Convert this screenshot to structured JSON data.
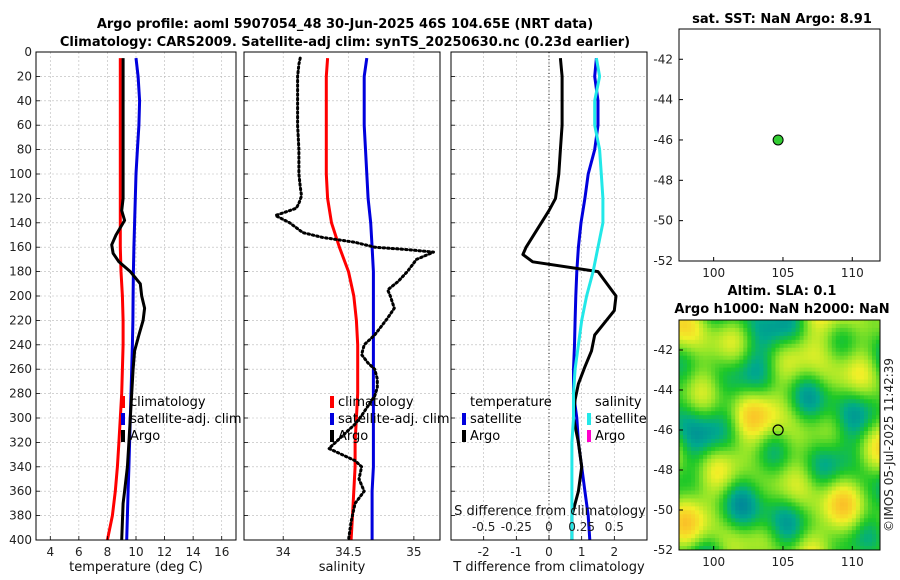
{
  "figure": {
    "title_line1": "Argo profile: aoml 5907054_48 30-Jun-2025 46S 104.65E (NRT data)",
    "title_line2": "Climatology: CARS2009. Satellite-adj clim: synTS_20250630.nc (0.23d earlier)",
    "watermark": "©IMOS 05-Jul-2025 11:42:39",
    "colors": {
      "red": "#ff0000",
      "blue": "#0000dd",
      "black": "#000000",
      "cyan": "#22e8e8",
      "magenta": "#ff00cc",
      "green": "#33cc33",
      "grid": "#b8b8b8"
    }
  },
  "chart_data": [
    {
      "id": "temperature",
      "type": "line",
      "xlabel": "temperature (deg C)",
      "xlim": [
        3,
        17
      ],
      "ylim": [
        400,
        0
      ],
      "yticks": [
        0,
        20,
        40,
        60,
        80,
        100,
        120,
        140,
        160,
        180,
        200,
        220,
        240,
        260,
        280,
        300,
        320,
        340,
        360,
        380,
        400
      ],
      "xticks": [
        4,
        6,
        8,
        10,
        12,
        14,
        16
      ],
      "legend": [
        "climatology",
        "satellite-adj. clim",
        "Argo"
      ],
      "series": [
        {
          "name": "climatology",
          "color": "#ff0000",
          "style": "solid",
          "x": [
            8.9,
            8.9,
            8.9,
            8.9,
            8.9,
            8.9,
            8.9,
            8.9,
            8.9,
            8.95,
            9.05,
            9.1,
            9.1,
            9.05,
            9.0,
            8.9,
            8.8,
            8.7,
            8.55,
            8.35,
            8.0
          ],
          "depth": [
            5,
            20,
            40,
            60,
            80,
            100,
            120,
            140,
            160,
            180,
            200,
            220,
            240,
            260,
            280,
            300,
            320,
            340,
            360,
            380,
            400
          ]
        },
        {
          "name": "satellite-adj. clim",
          "color": "#0000dd",
          "style": "solid",
          "x": [
            10.0,
            10.15,
            10.25,
            10.2,
            10.1,
            10.0,
            9.95,
            9.9,
            9.85,
            9.82,
            9.8,
            9.78,
            9.75,
            9.7,
            9.65,
            9.6,
            9.55,
            9.5,
            9.45,
            9.4,
            9.35
          ],
          "depth": [
            5,
            20,
            40,
            60,
            80,
            100,
            120,
            140,
            160,
            180,
            200,
            220,
            240,
            260,
            280,
            300,
            320,
            340,
            360,
            380,
            400
          ]
        },
        {
          "name": "Argo",
          "color": "#000000",
          "style": "solid",
          "x": [
            9.1,
            9.1,
            9.1,
            9.1,
            9.1,
            9.1,
            9.1,
            9.0,
            9.2,
            8.6,
            8.3,
            8.4,
            8.8,
            9.6,
            10.3,
            10.4,
            10.6,
            10.5,
            10.2,
            9.9,
            9.8,
            9.7,
            9.6,
            9.5,
            9.4,
            9.3,
            9.2,
            9.1,
            9.05,
            9.0
          ],
          "depth": [
            5,
            20,
            40,
            60,
            80,
            100,
            120,
            130,
            138,
            150,
            158,
            165,
            172,
            180,
            190,
            200,
            210,
            220,
            232,
            245,
            260,
            280,
            300,
            320,
            340,
            350,
            360,
            370,
            385,
            400
          ]
        }
      ]
    },
    {
      "id": "salinity",
      "type": "line",
      "xlabel": "salinity",
      "xlim": [
        33.7,
        35.2
      ],
      "ylim": [
        400,
        0
      ],
      "xticks": [
        34,
        34.5,
        35
      ],
      "legend": [
        "climatology",
        "satellite-adj. clim",
        "Argo"
      ],
      "series": [
        {
          "name": "climatology",
          "color": "#ff0000",
          "style": "solid",
          "x": [
            34.34,
            34.33,
            34.33,
            34.33,
            34.33,
            34.33,
            34.34,
            34.37,
            34.43,
            34.5,
            34.54,
            34.56,
            34.57,
            34.57,
            34.57,
            34.56,
            34.55,
            34.55,
            34.54,
            34.53,
            34.52
          ],
          "depth": [
            5,
            20,
            40,
            60,
            80,
            100,
            120,
            140,
            160,
            180,
            200,
            220,
            240,
            260,
            280,
            300,
            320,
            340,
            360,
            380,
            400
          ]
        },
        {
          "name": "satellite-adj. clim",
          "color": "#0000dd",
          "style": "solid",
          "x": [
            34.64,
            34.62,
            34.62,
            34.62,
            34.63,
            34.64,
            34.65,
            34.67,
            34.68,
            34.69,
            34.69,
            34.69,
            34.69,
            34.69,
            34.69,
            34.69,
            34.69,
            34.69,
            34.68,
            34.68,
            34.68
          ],
          "depth": [
            5,
            20,
            40,
            60,
            80,
            100,
            120,
            140,
            160,
            180,
            200,
            220,
            240,
            260,
            280,
            300,
            320,
            340,
            360,
            380,
            400
          ]
        },
        {
          "name": "Argo",
          "color": "#000000",
          "style": "dotted",
          "x": [
            34.13,
            34.12,
            34.11,
            34.11,
            34.11,
            34.12,
            34.12,
            34.13,
            34.14,
            34.12,
            34.1,
            34.05,
            33.94,
            34.05,
            34.15,
            34.3,
            34.55,
            34.7,
            34.95,
            35.15,
            35.02,
            34.95,
            34.88,
            34.8,
            34.82,
            34.85,
            34.8,
            34.75,
            34.7,
            34.62,
            34.6,
            34.65,
            34.7,
            34.72,
            34.72,
            34.7,
            34.65,
            34.6,
            34.55,
            34.5,
            34.45,
            34.42,
            34.35,
            34.45,
            34.55,
            34.6,
            34.58,
            34.62,
            34.55,
            34.52,
            34.5
          ],
          "depth": [
            5,
            10,
            20,
            40,
            60,
            80,
            100,
            110,
            118,
            124,
            128,
            130,
            134,
            140,
            148,
            152,
            156,
            160,
            162,
            164,
            170,
            180,
            188,
            195,
            200,
            210,
            218,
            225,
            232,
            240,
            248,
            255,
            260,
            268,
            275,
            282,
            290,
            298,
            305,
            310,
            315,
            318,
            325,
            330,
            335,
            340,
            350,
            360,
            370,
            385,
            400
          ]
        }
      ]
    },
    {
      "id": "difference",
      "type": "line",
      "xlabel": "T difference from climatology",
      "xlabel_top": "S difference from climatology",
      "xlim": [
        -3,
        3
      ],
      "ylim": [
        400,
        0
      ],
      "xticks": [
        -2,
        -1,
        0,
        1,
        2
      ],
      "xticks_S": [
        "-0.5",
        "-0.25",
        "0",
        "0.25",
        "0.5"
      ],
      "legend_left_title": "temperature",
      "legend_right_title": "salinity",
      "legend": [
        "satellite",
        "Argo"
      ],
      "series": [
        {
          "name": "T satellite",
          "color": "#0000dd",
          "style": "solid",
          "x": [
            1.45,
            1.4,
            1.5,
            1.5,
            1.4,
            1.2,
            1.1,
            0.98,
            0.9,
            0.85,
            0.82,
            0.8,
            0.78,
            0.75,
            0.75,
            0.85,
            0.9,
            1.0,
            1.1,
            1.2,
            1.25
          ],
          "depth": [
            5,
            20,
            40,
            60,
            80,
            100,
            120,
            140,
            160,
            180,
            200,
            220,
            240,
            260,
            280,
            300,
            320,
            340,
            360,
            380,
            400
          ]
        },
        {
          "name": "T Argo",
          "color": "#000000",
          "style": "solid",
          "x": [
            0.35,
            0.4,
            0.4,
            0.4,
            0.35,
            0.3,
            0.2,
            0.0,
            -0.7,
            -0.8,
            -0.5,
            1.5,
            2.05,
            2.0,
            1.7,
            1.4,
            1.3,
            1.1,
            0.9,
            0.8,
            0.75,
            0.9,
            1.0,
            0.9,
            0.7,
            0.7
          ],
          "depth": [
            5,
            20,
            40,
            60,
            80,
            100,
            120,
            130,
            160,
            166,
            172,
            180,
            200,
            212,
            222,
            232,
            245,
            258,
            272,
            285,
            300,
            320,
            340,
            360,
            380,
            400
          ]
        },
        {
          "name": "S satellite",
          "color": "#22e8e8",
          "style": "solid",
          "x": [
            1.45,
            1.55,
            1.4,
            1.4,
            1.55,
            1.6,
            1.65,
            1.65,
            1.5,
            1.35,
            1.15,
            1.0,
            0.9,
            0.8,
            0.75,
            0.75,
            0.7,
            0.7,
            0.7,
            0.7,
            0.7
          ],
          "depth": [
            5,
            20,
            40,
            60,
            80,
            100,
            120,
            140,
            160,
            180,
            200,
            220,
            240,
            260,
            280,
            300,
            320,
            340,
            360,
            380,
            400
          ]
        }
      ]
    },
    {
      "id": "sst_map",
      "type": "scatter",
      "title": "sat. SST: NaN Argo: 8.91",
      "xlim": [
        97.5,
        112
      ],
      "ylim": [
        -52,
        -40.5
      ],
      "xticks": [
        100,
        105,
        110
      ],
      "yticks": [
        -42,
        -44,
        -46,
        -48,
        -50,
        -52
      ],
      "points": [
        {
          "lon": 104.65,
          "lat": -46,
          "color": "#33cc33"
        }
      ]
    },
    {
      "id": "sla_map",
      "type": "heatmap",
      "title_line1": "Altim. SLA: 0.1",
      "title_line2": "Argo h1000: NaN h2000: NaN",
      "xlim": [
        97.5,
        112
      ],
      "ylim": [
        -52,
        -40.5
      ],
      "xticks": [
        100,
        105,
        110
      ],
      "yticks": [
        -42,
        -44,
        -46,
        -48,
        -50,
        -52
      ],
      "points": [
        {
          "lon": 104.65,
          "lat": -46
        }
      ]
    }
  ]
}
